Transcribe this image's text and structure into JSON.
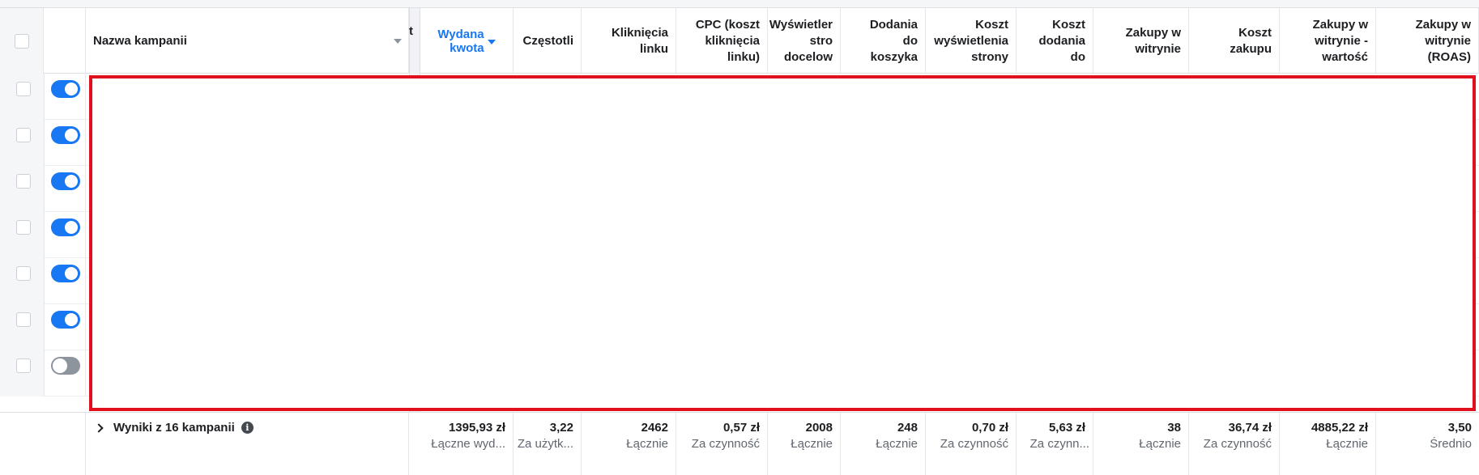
{
  "header": {
    "campaign_name_label": "Nazwa kampanii",
    "cutoff_label": "t",
    "columns": [
      {
        "label": "Wydana\nkwota"
      },
      {
        "label": "Częstotli"
      },
      {
        "label": "Kliknięcia\nlinku"
      },
      {
        "label": "CPC (koszt\nkliknięcia\nlinku)"
      },
      {
        "label": "Wyświetler\nstro\ndocelow"
      },
      {
        "label": "Dodania\ndo\nkoszyka"
      },
      {
        "label": "Koszt\nwyświetlenia\nstrony"
      },
      {
        "label": "Koszt\ndodania\ndo"
      },
      {
        "label": "Zakupy w\nwitrynie"
      },
      {
        "label": "Koszt\nzakupu"
      },
      {
        "label": "Zakupy w\nwitrynie -\nwartość"
      },
      {
        "label": "Zakupy w\nwitrynie\n(ROAS)"
      }
    ]
  },
  "rows": [
    {
      "toggle": "on"
    },
    {
      "toggle": "on"
    },
    {
      "toggle": "on"
    },
    {
      "toggle": "on"
    },
    {
      "toggle": "on"
    },
    {
      "toggle": "on"
    },
    {
      "toggle": "off"
    }
  ],
  "footer": {
    "summary_label": "Wyniki z 16 kampanii",
    "columns": [
      {
        "value": "1395,93 zł",
        "sub": "Łączne wyd..."
      },
      {
        "value": "3,22",
        "sub": "Za użytk..."
      },
      {
        "value": "2462",
        "sub": "Łącznie"
      },
      {
        "value": "0,57 zł",
        "sub": "Za czynność"
      },
      {
        "value": "2008",
        "sub": "Łącznie"
      },
      {
        "value": "248",
        "sub": "Łącznie"
      },
      {
        "value": "0,70 zł",
        "sub": "Za czynność"
      },
      {
        "value": "5,63 zł",
        "sub": "Za czynn..."
      },
      {
        "value": "38",
        "sub": "Łącznie"
      },
      {
        "value": "36,74 zł",
        "sub": "Za czynność"
      },
      {
        "value": "4885,22 zł",
        "sub": "Łącznie"
      },
      {
        "value": "3,50",
        "sub": "Średnio"
      }
    ]
  },
  "colors": {
    "accent": "#1877f2",
    "redaction": "#e0111d"
  }
}
